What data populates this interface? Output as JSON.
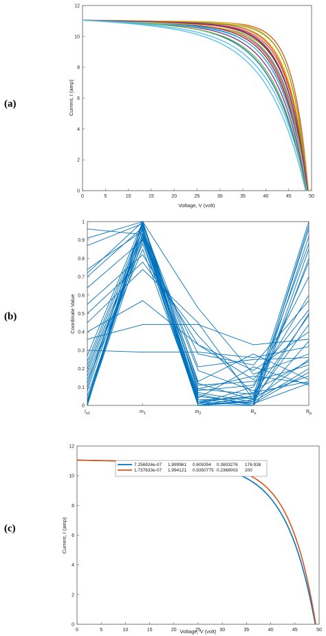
{
  "panels": {
    "a": {
      "label": "(a)"
    },
    "b": {
      "label": "(b)"
    },
    "c": {
      "label": "(c)"
    }
  },
  "chart_data": [
    {
      "type": "line",
      "xlabel": "Voltage, V (volt)",
      "ylabel": "Current, I (amp)",
      "xlim": [
        0,
        50
      ],
      "ylim": [
        0,
        12
      ],
      "xticks": [
        0,
        5,
        10,
        15,
        20,
        25,
        30,
        35,
        40,
        45,
        50
      ],
      "yticks": [
        0,
        2,
        4,
        6,
        8,
        10,
        12
      ],
      "grid": false,
      "isc": 11.05,
      "series": [
        {
          "color": "#0072BD",
          "voc": 48.8,
          "sharp": 7.0,
          "slope": 0.01
        },
        {
          "color": "#D95319",
          "voc": 49.3,
          "sharp": 15.0,
          "slope": 0.004
        },
        {
          "color": "#EDB120",
          "voc": 49.2,
          "sharp": 12.5,
          "slope": 0.006
        },
        {
          "color": "#7E2F8E",
          "voc": 49.0,
          "sharp": 9.5,
          "slope": 0.008
        },
        {
          "color": "#77AC30",
          "voc": 49.1,
          "sharp": 11.0,
          "slope": 0.012
        },
        {
          "color": "#4DBEEE",
          "voc": 48.9,
          "sharp": 6.5,
          "slope": 0.014
        },
        {
          "color": "#A2142F",
          "voc": 49.2,
          "sharp": 10.5,
          "slope": 0.007
        },
        {
          "color": "#0072BD",
          "voc": 49.0,
          "sharp": 8.5,
          "slope": 0.009
        },
        {
          "color": "#D95319",
          "voc": 49.1,
          "sharp": 12.0,
          "slope": 0.005
        },
        {
          "color": "#EDB120",
          "voc": 49.3,
          "sharp": 13.5,
          "slope": 0.003
        },
        {
          "color": "#7E2F8E",
          "voc": 48.9,
          "sharp": 8.0,
          "slope": 0.011
        },
        {
          "color": "#77AC30",
          "voc": 49.2,
          "sharp": 14.0,
          "slope": 0.006
        },
        {
          "color": "#4DBEEE",
          "voc": 48.7,
          "sharp": 6.0,
          "slope": 0.015
        },
        {
          "color": "#A2142F",
          "voc": 49.0,
          "sharp": 9.0,
          "slope": 0.008
        },
        {
          "color": "#0072BD",
          "voc": 49.1,
          "sharp": 10.0,
          "slope": 0.01
        },
        {
          "color": "#D95319",
          "voc": 49.2,
          "sharp": 11.5,
          "slope": 0.007
        },
        {
          "color": "#EDB120",
          "voc": 49.0,
          "sharp": 9.8,
          "slope": 0.009
        },
        {
          "color": "#7E2F8E",
          "voc": 49.1,
          "sharp": 10.8,
          "slope": 0.006
        },
        {
          "color": "#77AC30",
          "voc": 48.8,
          "sharp": 7.5,
          "slope": 0.013
        },
        {
          "color": "#4DBEEE",
          "voc": 49.0,
          "sharp": 8.8,
          "slope": 0.012
        }
      ]
    },
    {
      "type": "line",
      "xlabel": "",
      "ylabel": "Coordinate Value",
      "categories": [
        "I",
        "m",
        "m",
        "R",
        "R"
      ],
      "category_subscripts": [
        "o1",
        "1",
        "2",
        "s",
        "p"
      ],
      "ylim": [
        0,
        1
      ],
      "yticks": [
        0,
        0.1,
        0.2,
        0.3,
        0.4,
        0.5,
        0.6,
        0.7,
        0.8,
        0.9,
        1
      ],
      "grid": false,
      "series_color": "#0072BD",
      "lines": [
        [
          0.0,
          1.0,
          0.0,
          0.05,
          1.0
        ],
        [
          0.02,
          0.97,
          0.01,
          0.02,
          0.98
        ],
        [
          0.96,
          0.93,
          0.05,
          0.01,
          0.12
        ],
        [
          0.91,
          1.0,
          0.12,
          0.03,
          0.25
        ],
        [
          0.87,
          0.99,
          0.09,
          0.06,
          0.88
        ],
        [
          0.74,
          0.95,
          0.02,
          0.0,
          0.85
        ],
        [
          0.72,
          1.0,
          0.03,
          0.04,
          0.78
        ],
        [
          0.7,
          0.97,
          0.01,
          0.1,
          0.6
        ],
        [
          0.64,
          0.9,
          0.28,
          0.22,
          0.57
        ],
        [
          0.55,
          0.82,
          0.33,
          0.14,
          0.52
        ],
        [
          0.5,
          0.78,
          0.38,
          0.06,
          0.49
        ],
        [
          0.45,
          0.74,
          0.45,
          0.03,
          0.44
        ],
        [
          0.4,
          0.57,
          0.33,
          0.19,
          0.4
        ],
        [
          0.36,
          0.44,
          0.44,
          0.33,
          0.36
        ],
        [
          0.3,
          0.29,
          0.29,
          0.26,
          0.32
        ],
        [
          0.27,
          1.0,
          0.53,
          0.17,
          0.28
        ],
        [
          0.24,
          0.98,
          0.21,
          0.25,
          0.26
        ],
        [
          0.22,
          0.96,
          0.19,
          0.08,
          0.24
        ],
        [
          0.2,
          0.93,
          0.11,
          0.13,
          0.22
        ],
        [
          0.18,
          0.91,
          0.07,
          0.02,
          0.2
        ],
        [
          0.16,
          0.88,
          0.05,
          0.01,
          0.18
        ],
        [
          0.14,
          0.85,
          0.02,
          0.05,
          0.16
        ],
        [
          0.12,
          0.99,
          0.13,
          0.28,
          0.14
        ],
        [
          0.1,
          1.0,
          0.09,
          0.16,
          0.12
        ],
        [
          0.08,
          0.96,
          0.04,
          0.21,
          0.11
        ],
        [
          0.05,
          0.92,
          0.01,
          0.07,
          0.13
        ],
        [
          0.03,
          0.97,
          0.0,
          0.0,
          0.35
        ],
        [
          0.02,
          1.0,
          0.08,
          0.11,
          0.7
        ],
        [
          0.01,
          0.94,
          0.03,
          0.01,
          0.92
        ],
        [
          0.01,
          0.9,
          0.0,
          0.03,
          0.96
        ],
        [
          0.0,
          0.97,
          0.06,
          0.0,
          0.8
        ],
        [
          0.2,
          0.93,
          0.0,
          0.02,
          0.5
        ]
      ]
    },
    {
      "type": "line",
      "xlabel": "Voltage, V (volt)",
      "ylabel": "Current, I (amp)",
      "xlim": [
        0,
        50
      ],
      "ylim": [
        0,
        12
      ],
      "xticks": [
        0,
        5,
        10,
        15,
        20,
        25,
        30,
        35,
        40,
        45,
        50
      ],
      "yticks": [
        0,
        2,
        4,
        6,
        8,
        10,
        12
      ],
      "grid": false,
      "legend_position": "top-center",
      "isc": 11.05,
      "series": [
        {
          "color": "#0072BD",
          "voc": 49.2,
          "sharp": 8.2,
          "slope": 0.006,
          "legend": [
            "7.256924e-07",
            "1.999961",
            "0.609354",
            "0.3803276",
            "176.938"
          ]
        },
        {
          "color": "#D95319",
          "voc": 49.3,
          "sharp": 9.2,
          "slope": 0.005,
          "legend": [
            "1.737633e-07",
            "1.994121",
            "0.9350775",
            "0.2368003",
            "200"
          ]
        }
      ]
    }
  ]
}
